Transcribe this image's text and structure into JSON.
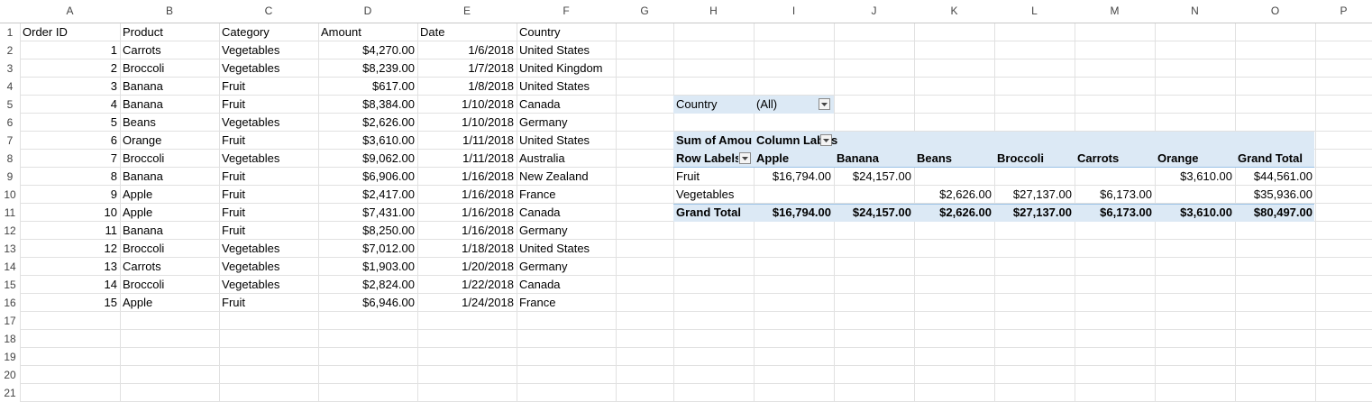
{
  "columns": [
    "A",
    "B",
    "C",
    "D",
    "E",
    "F",
    "G",
    "H",
    "I",
    "J",
    "K",
    "L",
    "M",
    "N",
    "O",
    "P"
  ],
  "rows": [
    "1",
    "2",
    "3",
    "4",
    "5",
    "6",
    "7",
    "8",
    "9",
    "10",
    "11",
    "12",
    "13",
    "14",
    "15",
    "16",
    "17",
    "18",
    "19",
    "20",
    "21"
  ],
  "table": {
    "headers": [
      "Order ID",
      "Product",
      "Category",
      "Amount",
      "Date",
      "Country"
    ],
    "records": [
      [
        "1",
        "Carrots",
        "Vegetables",
        "$4,270.00",
        "1/6/2018",
        "United States"
      ],
      [
        "2",
        "Broccoli",
        "Vegetables",
        "$8,239.00",
        "1/7/2018",
        "United Kingdom"
      ],
      [
        "3",
        "Banana",
        "Fruit",
        "$617.00",
        "1/8/2018",
        "United States"
      ],
      [
        "4",
        "Banana",
        "Fruit",
        "$8,384.00",
        "1/10/2018",
        "Canada"
      ],
      [
        "5",
        "Beans",
        "Vegetables",
        "$2,626.00",
        "1/10/2018",
        "Germany"
      ],
      [
        "6",
        "Orange",
        "Fruit",
        "$3,610.00",
        "1/11/2018",
        "United States"
      ],
      [
        "7",
        "Broccoli",
        "Vegetables",
        "$9,062.00",
        "1/11/2018",
        "Australia"
      ],
      [
        "8",
        "Banana",
        "Fruit",
        "$6,906.00",
        "1/16/2018",
        "New Zealand"
      ],
      [
        "9",
        "Apple",
        "Fruit",
        "$2,417.00",
        "1/16/2018",
        "France"
      ],
      [
        "10",
        "Apple",
        "Fruit",
        "$7,431.00",
        "1/16/2018",
        "Canada"
      ],
      [
        "11",
        "Banana",
        "Fruit",
        "$8,250.00",
        "1/16/2018",
        "Germany"
      ],
      [
        "12",
        "Broccoli",
        "Vegetables",
        "$7,012.00",
        "1/18/2018",
        "United States"
      ],
      [
        "13",
        "Carrots",
        "Vegetables",
        "$1,903.00",
        "1/20/2018",
        "Germany"
      ],
      [
        "14",
        "Broccoli",
        "Vegetables",
        "$2,824.00",
        "1/22/2018",
        "Canada"
      ],
      [
        "15",
        "Apple",
        "Fruit",
        "$6,946.00",
        "1/24/2018",
        "France"
      ]
    ]
  },
  "pivot": {
    "filter_label": "Country",
    "filter_value": "(All)",
    "values_header": "Sum of Amou",
    "column_labels_header": "Column Lab",
    "column_labels_tail": "s",
    "row_labels_header": "Row Labels",
    "columns": [
      "Apple",
      "Banana",
      "Beans",
      "Broccoli",
      "Carrots",
      "Orange",
      "Grand Total"
    ],
    "rows": [
      {
        "label": "Fruit",
        "values": [
          "$16,794.00",
          "$24,157.00",
          "",
          "",
          "",
          "$3,610.00",
          "$44,561.00"
        ]
      },
      {
        "label": "Vegetables",
        "values": [
          "",
          "",
          "$2,626.00",
          "$27,137.00",
          "$6,173.00",
          "",
          "$35,936.00"
        ]
      }
    ],
    "total": {
      "label": "Grand Total",
      "values": [
        "$16,794.00",
        "$24,157.00",
        "$2,626.00",
        "$27,137.00",
        "$6,173.00",
        "$3,610.00",
        "$80,497.00"
      ]
    }
  },
  "icons": {
    "dropdown": "dropdown-arrow-icon"
  },
  "colors": {
    "pivot_fill": "#dce9f5",
    "pivot_rule": "#9bc2e6",
    "gridline": "#e1e1e1"
  }
}
